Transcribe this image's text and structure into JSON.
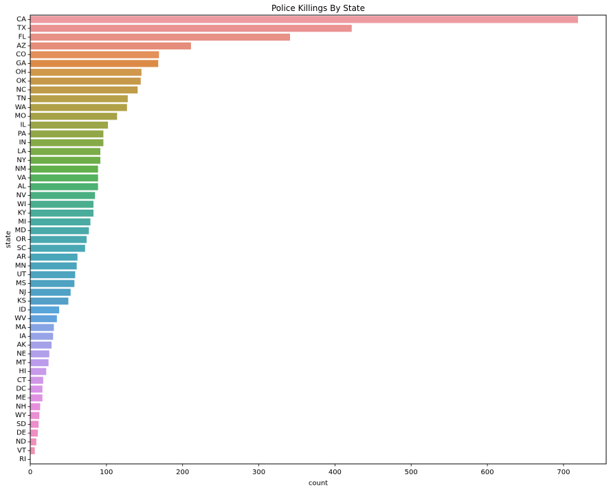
{
  "chart_data": {
    "type": "bar",
    "orientation": "horizontal",
    "title": "Police Killings By State",
    "xlabel": "count",
    "ylabel": "state",
    "xlim": [
      0,
      756
    ],
    "xticks": [
      0,
      100,
      200,
      300,
      400,
      500,
      600,
      700
    ],
    "grid": false,
    "categories": [
      "CA",
      "TX",
      "FL",
      "AZ",
      "CO",
      "GA",
      "OH",
      "OK",
      "NC",
      "TN",
      "WA",
      "MO",
      "IL",
      "PA",
      "IN",
      "LA",
      "NY",
      "NM",
      "VA",
      "AL",
      "NV",
      "WI",
      "KY",
      "MI",
      "MD",
      "OR",
      "SC",
      "AR",
      "MN",
      "UT",
      "MS",
      "NJ",
      "KS",
      "ID",
      "WV",
      "MA",
      "IA",
      "AK",
      "NE",
      "MT",
      "HI",
      "CT",
      "DC",
      "ME",
      "NH",
      "WY",
      "SD",
      "DE",
      "ND",
      "VT",
      "RI"
    ],
    "values": [
      719,
      422,
      341,
      211,
      169,
      168,
      146,
      145,
      141,
      128,
      127,
      114,
      102,
      96,
      96,
      92,
      92,
      89,
      89,
      89,
      85,
      83,
      83,
      79,
      77,
      74,
      72,
      62,
      61,
      59,
      58,
      53,
      50,
      38,
      35,
      31,
      30,
      28,
      25,
      24,
      21,
      17,
      16,
      16,
      13,
      12,
      11,
      10,
      8,
      6,
      0
    ],
    "colors": [
      "#ee9aa1",
      "#eb9293",
      "#e89186",
      "#e58d7a",
      "#e4905a",
      "#dc8b47",
      "#cf984b",
      "#c6994a",
      "#c09b48",
      "#b6a049",
      "#b0a146",
      "#a6a248",
      "#9ca648",
      "#92a848",
      "#86aa48",
      "#7aac48",
      "#6eae48",
      "#62b04c",
      "#55b25e",
      "#4cb172",
      "#4baf82",
      "#4aae8f",
      "#4aac9a",
      "#4aaba3",
      "#4aaaaa",
      "#4aa9b0",
      "#4aa8b5",
      "#4aa6b9",
      "#4ba5bc",
      "#4ca4bf",
      "#4ea2c2",
      "#50a1c5",
      "#539fc8",
      "#57a5d9",
      "#62a2dc",
      "#86a4e4",
      "#98a4e7",
      "#a6a2e9",
      "#b29fea",
      "#bb9ceb",
      "#c79aea",
      "#d097e8",
      "#d894e6",
      "#e092e2",
      "#e690dc",
      "#ea8fd4",
      "#ec8fcc",
      "#ee8fc4",
      "#ef90bc",
      "#ef92b4",
      "#ef94ad"
    ]
  }
}
